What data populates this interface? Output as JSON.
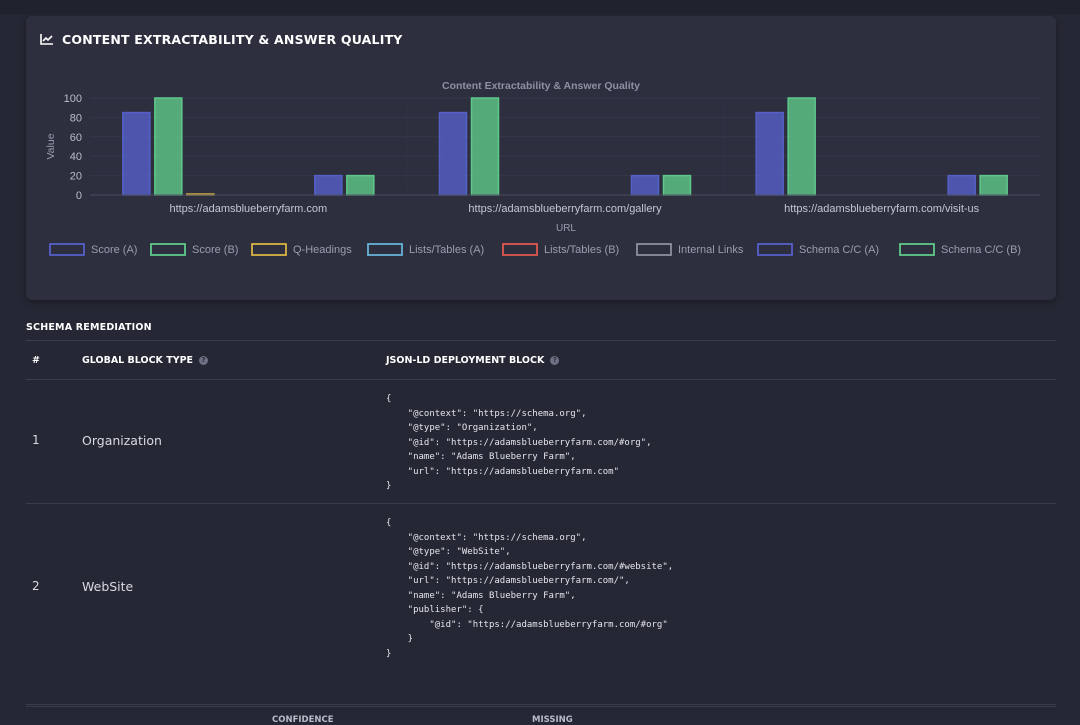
{
  "card": {
    "title": "CONTENT EXTRACTABILITY & ANSWER QUALITY",
    "icon": "line-chart-icon"
  },
  "chart_data": {
    "type": "bar",
    "title": "Content Extractability & Answer Quality",
    "xlabel": "URL",
    "ylabel": "Value",
    "ylim": [
      0,
      100
    ],
    "yticks": [
      0,
      20,
      40,
      60,
      80,
      100
    ],
    "categories": [
      "https://adamsblueberryfarm.com",
      "https://adamsblueberryfarm.com/gallery",
      "https://adamsblueberryfarm.com/visit-us"
    ],
    "legend_position": "bottom",
    "grid": true,
    "series": [
      {
        "name": "Score (A)",
        "color": "#5560c8",
        "values": [
          85,
          85,
          85
        ]
      },
      {
        "name": "Score (B)",
        "color": "#5fc98a",
        "values": [
          100,
          100,
          100
        ]
      },
      {
        "name": "Q-Headings",
        "color": "#d8b340",
        "values": [
          1,
          0,
          0
        ]
      },
      {
        "name": "Lists/Tables (A)",
        "color": "#66b2d8",
        "values": [
          0,
          0,
          0
        ]
      },
      {
        "name": "Lists/Tables (B)",
        "color": "#e0574e",
        "values": [
          0,
          0,
          0
        ]
      },
      {
        "name": "Internal Links",
        "color": "#8c8f9e",
        "values": [
          0,
          0,
          0
        ]
      },
      {
        "name": "Schema C/C (A)",
        "color": "#5560c8",
        "values": [
          20,
          20,
          20
        ]
      },
      {
        "name": "Schema C/C (B)",
        "color": "#5fc98a",
        "values": [
          20,
          20,
          20
        ]
      }
    ]
  },
  "schema": {
    "section_title": "SCHEMA REMEDIATION",
    "columns": {
      "num": "#",
      "block_type": "GLOBAL BLOCK TYPE",
      "deployment": "JSON-LD DEPLOYMENT BLOCK"
    },
    "rows": [
      {
        "num": "1",
        "type": "Organization",
        "code": "{\n    \"@context\": \"https://schema.org\",\n    \"@type\": \"Organization\",\n    \"@id\": \"https://adamsblueberryfarm.com/#org\",\n    \"name\": \"Adams Blueberry Farm\",\n    \"url\": \"https://adamsblueberryfarm.com\"\n}"
      },
      {
        "num": "2",
        "type": "WebSite",
        "code": "{\n    \"@context\": \"https://schema.org\",\n    \"@type\": \"WebSite\",\n    \"@id\": \"https://adamsblueberryfarm.com/#website\",\n    \"url\": \"https://adamsblueberryfarm.com/\",\n    \"name\": \"Adams Blueberry Farm\",\n    \"publisher\": {\n        \"@id\": \"https://adamsblueberryfarm.com/#org\"\n    }\n}"
      }
    ],
    "footer": {
      "col_a": "CONFIDENCE",
      "col_b": "MISSING"
    }
  }
}
